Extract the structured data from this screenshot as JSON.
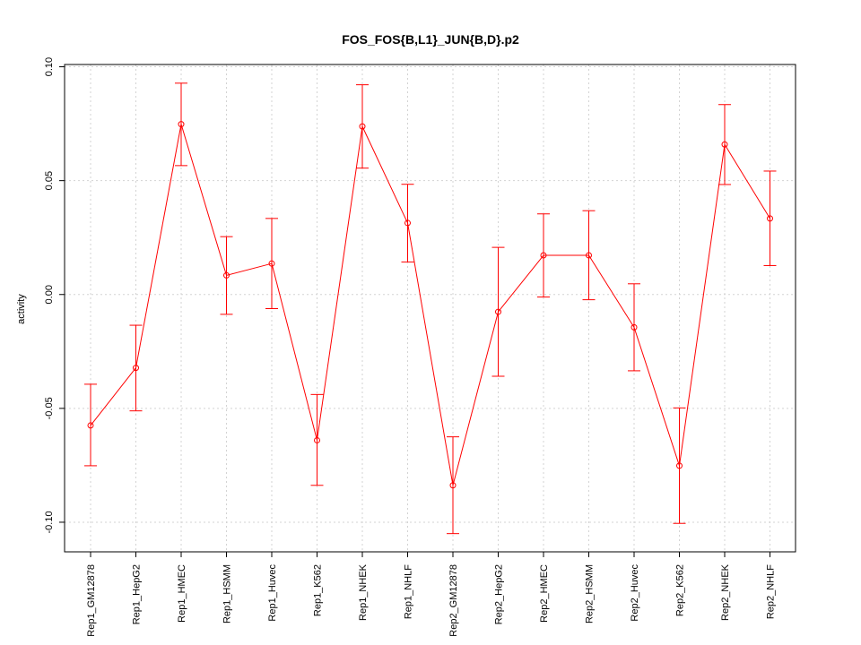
{
  "chart_data": {
    "type": "line",
    "title": "FOS_FOS{B,L1}_JUN{B,D}.p2",
    "xlabel": "",
    "ylabel": "activity",
    "ylim": [
      -0.113,
      0.101
    ],
    "y_ticks": [
      -0.1,
      -0.05,
      0.0,
      0.05,
      0.1
    ],
    "y_tick_labels": [
      "-0.10",
      "-0.05",
      "0.00",
      "0.05",
      "0.10"
    ],
    "grid": true,
    "categories": [
      "Rep1_GM12878",
      "Rep1_HepG2",
      "Rep1_HMEC",
      "Rep1_HSMM",
      "Rep1_Huvec",
      "Rep1_K562",
      "Rep1_NHEK",
      "Rep1_NHLF",
      "Rep2_GM12878",
      "Rep2_HepG2",
      "Rep2_HMEC",
      "Rep2_HSMM",
      "Rep2_Huvec",
      "Rep2_K562",
      "Rep2_NHEK",
      "Rep2_NHLF"
    ],
    "series": [
      {
        "name": "activity",
        "color": "#ff0000",
        "values": [
          -0.0575,
          -0.0322,
          0.0748,
          0.0084,
          0.0136,
          -0.064,
          0.0738,
          0.0314,
          -0.0838,
          -0.0076,
          0.0172,
          0.0172,
          -0.0144,
          -0.0752,
          0.0659,
          0.0334
        ],
        "upper": [
          -0.0394,
          -0.0135,
          0.0928,
          0.0254,
          0.0334,
          -0.0439,
          0.0921,
          0.0484,
          -0.0625,
          0.0207,
          0.0354,
          0.0368,
          0.0047,
          -0.0498,
          0.0834,
          0.0542
        ],
        "lower": [
          -0.0752,
          -0.0511,
          0.0566,
          -0.0087,
          -0.0062,
          -0.0838,
          0.0555,
          0.0143,
          -0.105,
          -0.0359,
          -0.0011,
          -0.0023,
          -0.0335,
          -0.1005,
          0.0483,
          0.0127
        ]
      }
    ]
  }
}
